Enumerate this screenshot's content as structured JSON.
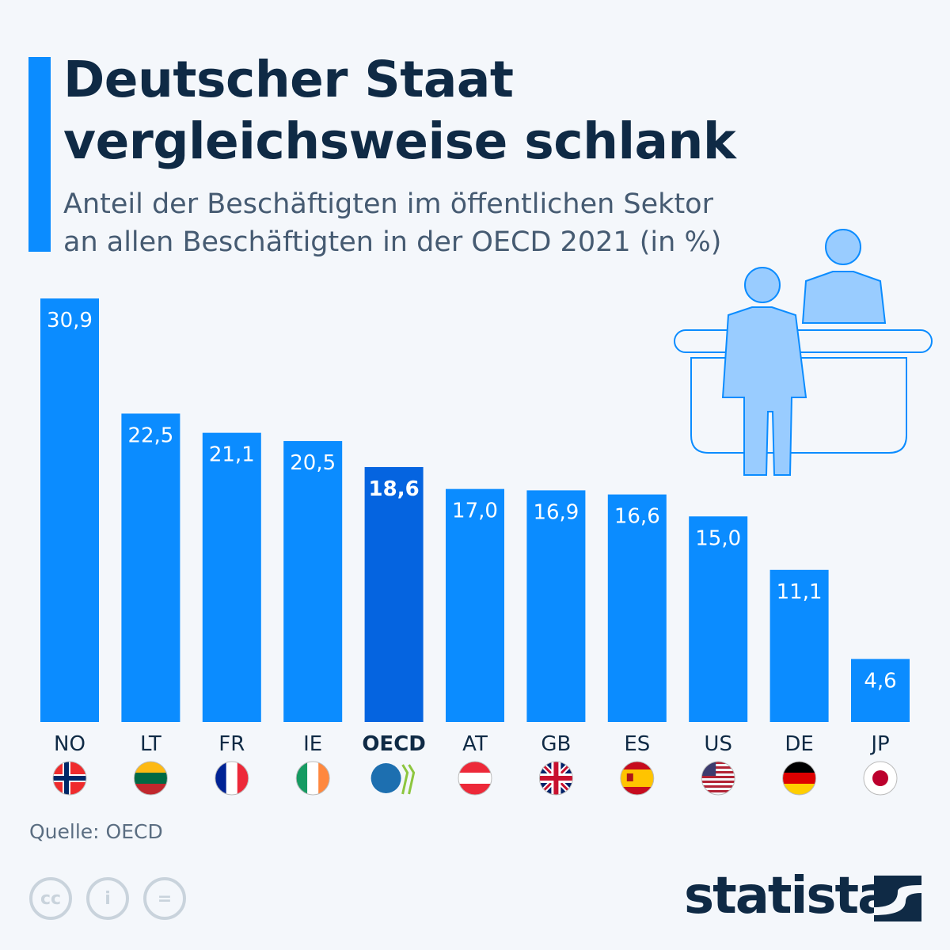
{
  "header": {
    "title_line1": "Deutscher Staat",
    "title_line2": "vergleichsweise schlank",
    "subtitle_line1": "Anteil der Beschäftigten im öffentlichen Sektor",
    "subtitle_line2": "an allen Beschäftigten in der OECD 2021 (in %)"
  },
  "chart_data": {
    "type": "bar",
    "categories": [
      "NO",
      "LT",
      "FR",
      "IE",
      "OECD",
      "AT",
      "GB",
      "ES",
      "US",
      "DE",
      "JP"
    ],
    "values": [
      30.9,
      22.5,
      21.1,
      20.5,
      18.6,
      17.0,
      16.9,
      16.6,
      15.0,
      11.1,
      4.6
    ],
    "value_labels": [
      "30,9",
      "22,5",
      "21,1",
      "20,5",
      "18,6",
      "17,0",
      "16,9",
      "16,6",
      "15,0",
      "11,1",
      "4,6"
    ],
    "highlight": "OECD",
    "colors": {
      "bar": "#0b8cff",
      "highlight": "#0564e0",
      "label": "#ffffff"
    },
    "ylim": [
      0,
      31
    ],
    "grid": false,
    "icons": [
      "flag-norway",
      "flag-lithuania",
      "flag-france",
      "flag-ireland",
      "oecd-logo",
      "flag-austria",
      "flag-uk",
      "flag-spain",
      "flag-usa",
      "flag-germany",
      "flag-japan"
    ]
  },
  "footer": {
    "source": "Quelle: OECD",
    "brand": "statista"
  }
}
